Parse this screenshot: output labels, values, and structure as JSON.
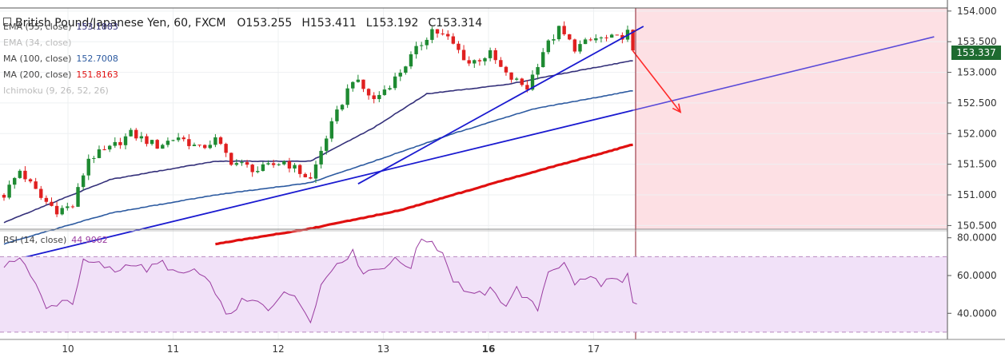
{
  "header": {
    "symbol": "British Pound/Japanese Yen, 60, FXCM",
    "open": "O153.255",
    "high": "H153.411",
    "low": "L153.192",
    "close": "C153.314"
  },
  "indicators": [
    {
      "label": "EMA (55, close)",
      "value": "153.1883",
      "color": "#34307a"
    },
    {
      "label": "EMA (34, close)",
      "value": "",
      "color": "#bbbbbb"
    },
    {
      "label": "MA (100, close)",
      "value": "152.7008",
      "color": "#2c5aa0"
    },
    {
      "label": "MA (200, close)",
      "value": "151.8163",
      "color": "#e01010"
    },
    {
      "label": "Ichimoku (9, 26, 52, 26)",
      "value": "",
      "color": "#bbbbbb"
    }
  ],
  "last_price": "153.337",
  "rsi_panel": {
    "label": "RSI (14, close)",
    "value": "44.9062"
  },
  "colors": {
    "up": "#1e8a32",
    "down": "#e02020",
    "ema55": "#34307a",
    "ma100": "#2c5aa0",
    "ma200": "#e01010",
    "trend": "#1a1ad0",
    "channel": "#5a4ad8",
    "forecast_bg": "#fde0e4",
    "rsi": "#9a3ca0",
    "rsi_band": "#f1e1f8"
  },
  "chart_data": {
    "type": "candlestick",
    "price_axis": {
      "ticks": [
        "154.000",
        "153.500",
        "153.000",
        "152.500",
        "152.000",
        "151.500",
        "151.000",
        "150.500"
      ],
      "range": [
        150.44,
        154.05
      ]
    },
    "time_axis": {
      "labels": [
        "10",
        "11",
        "12",
        "13",
        "16",
        "17"
      ],
      "bold": [
        "16"
      ]
    },
    "ohlc_bars": 120,
    "close_path": [
      {
        "bar": 0,
        "close": 151.0
      },
      {
        "bar": 3,
        "close": 151.4
      },
      {
        "bar": 7,
        "close": 150.95
      },
      {
        "bar": 10,
        "close": 150.75
      },
      {
        "bar": 13,
        "close": 150.82
      },
      {
        "bar": 16,
        "close": 151.6
      },
      {
        "bar": 20,
        "close": 151.75
      },
      {
        "bar": 24,
        "close": 152.0
      },
      {
        "bar": 29,
        "close": 151.8
      },
      {
        "bar": 33,
        "close": 151.95
      },
      {
        "bar": 37,
        "close": 151.75
      },
      {
        "bar": 40,
        "close": 151.9
      },
      {
        "bar": 43,
        "close": 151.55
      },
      {
        "bar": 48,
        "close": 151.4
      },
      {
        "bar": 53,
        "close": 151.55
      },
      {
        "bar": 58,
        "close": 151.25
      },
      {
        "bar": 61,
        "close": 151.95
      },
      {
        "bar": 66,
        "close": 152.9
      },
      {
        "bar": 70,
        "close": 152.55
      },
      {
        "bar": 74,
        "close": 152.9
      },
      {
        "bar": 77,
        "close": 153.25
      },
      {
        "bar": 81,
        "close": 153.7
      },
      {
        "bar": 84,
        "close": 153.55
      },
      {
        "bar": 88,
        "close": 153.15
      },
      {
        "bar": 92,
        "close": 153.3
      },
      {
        "bar": 95,
        "close": 152.95
      },
      {
        "bar": 99,
        "close": 152.75
      },
      {
        "bar": 102,
        "close": 153.35
      },
      {
        "bar": 105,
        "close": 153.7
      },
      {
        "bar": 108,
        "close": 153.4
      },
      {
        "bar": 112,
        "close": 153.55
      },
      {
        "bar": 116,
        "close": 153.55
      },
      {
        "bar": 118,
        "close": 153.65
      },
      {
        "bar": 119,
        "close": 153.3
      }
    ],
    "ema55": [
      {
        "bar": 0,
        "value": 150.55
      },
      {
        "bar": 20,
        "value": 151.25
      },
      {
        "bar": 40,
        "value": 151.55
      },
      {
        "bar": 58,
        "value": 151.55
      },
      {
        "bar": 70,
        "value": 152.1
      },
      {
        "bar": 80,
        "value": 152.65
      },
      {
        "bar": 95,
        "value": 152.8
      },
      {
        "bar": 110,
        "value": 153.05
      },
      {
        "bar": 119,
        "value": 153.19
      }
    ],
    "ma100": [
      {
        "bar": 0,
        "value": 150.2
      },
      {
        "bar": 20,
        "value": 150.7
      },
      {
        "bar": 40,
        "value": 151.0
      },
      {
        "bar": 58,
        "value": 151.2
      },
      {
        "bar": 70,
        "value": 151.55
      },
      {
        "bar": 85,
        "value": 152.0
      },
      {
        "bar": 100,
        "value": 152.4
      },
      {
        "bar": 119,
        "value": 152.7
      }
    ],
    "ma200": [
      {
        "bar": 40,
        "value": 150.2
      },
      {
        "bar": 58,
        "value": 150.45
      },
      {
        "bar": 75,
        "value": 150.75
      },
      {
        "bar": 95,
        "value": 151.25
      },
      {
        "bar": 119,
        "value": 151.82
      }
    ],
    "rsi": {
      "ticks": [
        "80.0000",
        "60.0000",
        "40.0000"
      ],
      "band": [
        70,
        30
      ],
      "range": [
        27,
        82
      ],
      "points": [
        {
          "bar": 0,
          "value": 63
        },
        {
          "bar": 3,
          "value": 71
        },
        {
          "bar": 6,
          "value": 55
        },
        {
          "bar": 8,
          "value": 42
        },
        {
          "bar": 11,
          "value": 47
        },
        {
          "bar": 13,
          "value": 46
        },
        {
          "bar": 15,
          "value": 67
        },
        {
          "bar": 18,
          "value": 66
        },
        {
          "bar": 21,
          "value": 62
        },
        {
          "bar": 24,
          "value": 67
        },
        {
          "bar": 27,
          "value": 63
        },
        {
          "bar": 30,
          "value": 67
        },
        {
          "bar": 33,
          "value": 60
        },
        {
          "bar": 36,
          "value": 63
        },
        {
          "bar": 40,
          "value": 52
        },
        {
          "bar": 42,
          "value": 38
        },
        {
          "bar": 45,
          "value": 46
        },
        {
          "bar": 48,
          "value": 46
        },
        {
          "bar": 50,
          "value": 41
        },
        {
          "bar": 53,
          "value": 53
        },
        {
          "bar": 56,
          "value": 45
        },
        {
          "bar": 58,
          "value": 37
        },
        {
          "bar": 60,
          "value": 55
        },
        {
          "bar": 63,
          "value": 67
        },
        {
          "bar": 66,
          "value": 72
        },
        {
          "bar": 68,
          "value": 62
        },
        {
          "bar": 71,
          "value": 64
        },
        {
          "bar": 74,
          "value": 68
        },
        {
          "bar": 77,
          "value": 65
        },
        {
          "bar": 79,
          "value": 80
        },
        {
          "bar": 81,
          "value": 78
        },
        {
          "bar": 83,
          "value": 72
        },
        {
          "bar": 85,
          "value": 58
        },
        {
          "bar": 87,
          "value": 53
        },
        {
          "bar": 89,
          "value": 49
        },
        {
          "bar": 92,
          "value": 52
        },
        {
          "bar": 95,
          "value": 45
        },
        {
          "bar": 97,
          "value": 53
        },
        {
          "bar": 99,
          "value": 47
        },
        {
          "bar": 101,
          "value": 42
        },
        {
          "bar": 103,
          "value": 63
        },
        {
          "bar": 106,
          "value": 66
        },
        {
          "bar": 108,
          "value": 56
        },
        {
          "bar": 111,
          "value": 59
        },
        {
          "bar": 113,
          "value": 56
        },
        {
          "bar": 115,
          "value": 58
        },
        {
          "bar": 117,
          "value": 55
        },
        {
          "bar": 118,
          "value": 60
        },
        {
          "bar": 119,
          "value": 44.9
        }
      ]
    },
    "drawings": {
      "trendline_steep": {
        "from": {
          "bar": 67,
          "price": 151.18
        },
        "to": {
          "bar": 121,
          "price": 153.75
        }
      },
      "trendline_lower": {
        "from": {
          "bar": 0,
          "price": 149.9
        },
        "to": {
          "bar": 119,
          "price": 152.38
        }
      },
      "channel_line": {
        "from": {
          "bar": 119,
          "price": 152.38
        },
        "to": {
          "bar": 176,
          "price": 153.58
        }
      },
      "forecast_arrow": {
        "from": {
          "bar": 119,
          "price": 153.35
        },
        "to": {
          "bar": 128,
          "price": 152.35
        }
      }
    }
  }
}
